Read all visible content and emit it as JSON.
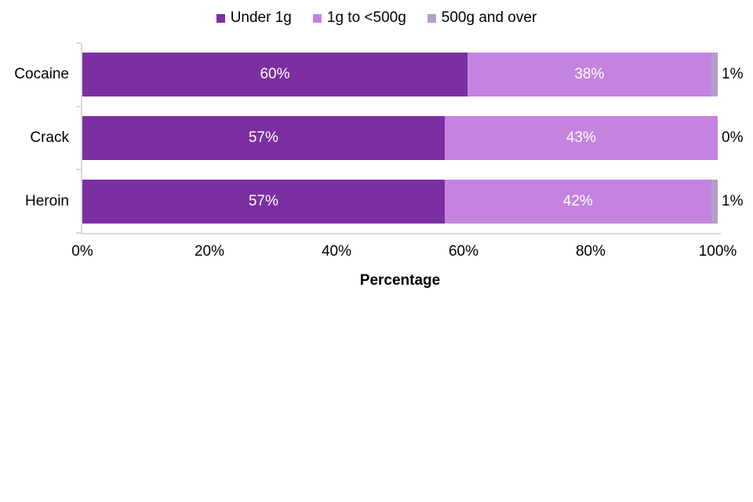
{
  "chart_data": {
    "type": "bar",
    "subtype": "horizontal-stacked",
    "title": "",
    "xlabel": "Percentage",
    "ylabel": "",
    "categories": [
      "Cocaine",
      "Crack",
      "Heroin"
    ],
    "series": [
      {
        "name": "Under 1g",
        "color": "#7b2fa0",
        "values": [
          60,
          57,
          57
        ]
      },
      {
        "name": "1g to <500g",
        "color": "#c583e0",
        "values": [
          38,
          43,
          42
        ]
      },
      {
        "name": "500g and over",
        "color": "#b1a0c9",
        "values": [
          1,
          0,
          1
        ]
      }
    ],
    "inside_labels": [
      [
        "60%",
        "38%"
      ],
      [
        "57%",
        "43%"
      ],
      [
        "57%",
        "42%"
      ]
    ],
    "outside_labels": [
      "1%",
      "0%",
      "1%"
    ],
    "x_ticks": [
      "0%",
      "20%",
      "40%",
      "60%",
      "80%",
      "100%"
    ],
    "xlim": [
      0,
      100
    ],
    "legend_position": "top",
    "grid": false,
    "colors": {
      "axis_line": "#d9d9d9",
      "text": "#000000",
      "inside_label_text": "#ffffff",
      "background": "#ffffff"
    }
  }
}
